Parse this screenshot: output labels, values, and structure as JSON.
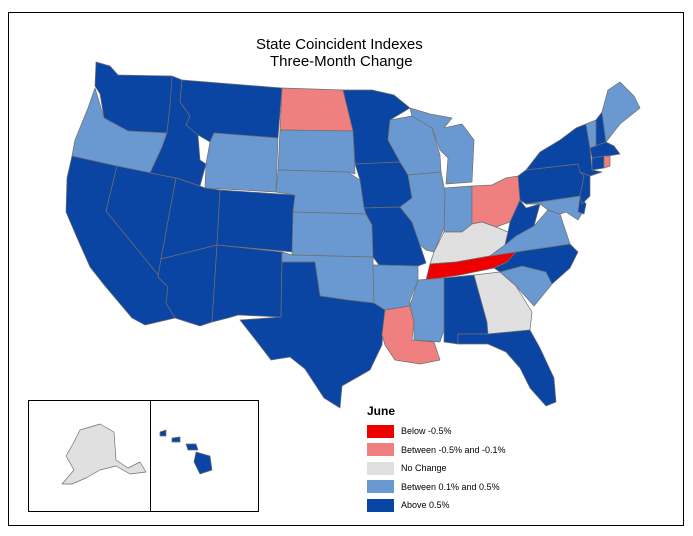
{
  "map": {
    "title_line1": "State Coincident Indexes",
    "title_line2": "Three-Month Change"
  },
  "legend": {
    "title": "June",
    "items": [
      {
        "label": "Below -0.5%",
        "color": "#ee0000"
      },
      {
        "label": "Between -0.5% and -0.1%",
        "color": "#f07f7f"
      },
      {
        "label": "No Change",
        "color": "#e0e0e0"
      },
      {
        "label": "Between 0.1% and 0.5%",
        "color": "#6a98d0"
      },
      {
        "label": "Above 0.5%",
        "color": "#0b45a3"
      }
    ]
  },
  "colors": {
    "above": "#0b45a3",
    "between_pos": "#6a98d0",
    "no_change": "#e0e0e0",
    "between_neg": "#f07f7f",
    "below": "#ee0000",
    "border": "#6f6f6f"
  },
  "states": {
    "WA": "above",
    "OR": "between_pos",
    "CA": "above",
    "NV": "above",
    "ID": "above",
    "MT": "above",
    "WY": "between_pos",
    "UT": "above",
    "AZ": "above",
    "CO": "above",
    "NM": "above",
    "ND": "between_neg",
    "SD": "between_pos",
    "NE": "between_pos",
    "KS": "between_pos",
    "OK": "between_pos",
    "TX": "above",
    "MN": "above",
    "IA": "above",
    "MO": "above",
    "AR": "between_pos",
    "LA": "between_neg",
    "WI": "between_pos",
    "IL": "between_pos",
    "MI": "between_pos",
    "IN": "between_pos",
    "OH": "between_neg",
    "KY": "no_change",
    "TN": "below",
    "MS": "between_pos",
    "AL": "above",
    "GA": "no_change",
    "FL": "above",
    "SC": "between_pos",
    "NC": "above",
    "VA": "between_pos",
    "WV": "above",
    "PA": "above",
    "NY": "above",
    "VT": "between_pos",
    "NH": "above",
    "ME": "between_pos",
    "MA": "above",
    "RI": "between_neg",
    "CT": "above",
    "NJ": "above",
    "DE": "above",
    "MD": "between_pos",
    "AK": "no_change",
    "HI": "above"
  }
}
